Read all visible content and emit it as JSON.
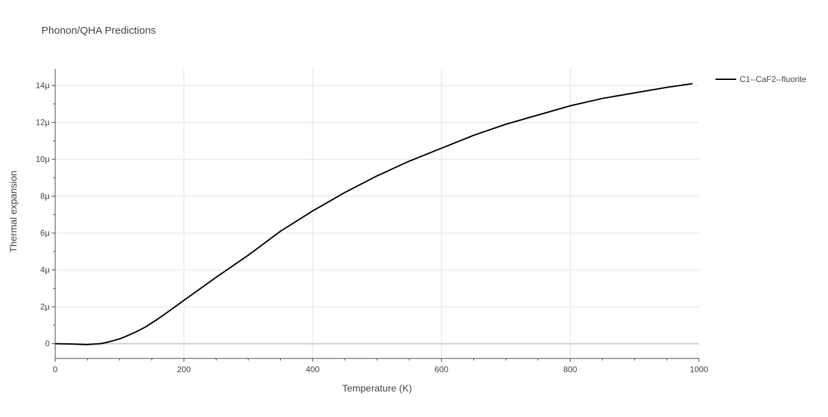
{
  "chart_data": {
    "type": "line",
    "title": "Phonon/QHA Predictions",
    "xlabel": "Temperature (K)",
    "ylabel": "Thermal expansion",
    "xlim": [
      0,
      1000
    ],
    "ylim": [
      -8e-07,
      1.49e-05
    ],
    "x_ticks": [
      0,
      200,
      400,
      600,
      800,
      1000
    ],
    "x_tick_labels": [
      "0",
      "200",
      "400",
      "600",
      "800",
      "1000"
    ],
    "y_ticks": [
      0,
      2e-06,
      4e-06,
      6e-06,
      8e-06,
      1e-05,
      1.2e-05,
      1.4e-05
    ],
    "y_tick_labels": [
      "0",
      "2μ",
      "4μ",
      "6μ",
      "8μ",
      "10μ",
      "12μ",
      "14μ"
    ],
    "grid": true,
    "legend_position": "top-right",
    "series": [
      {
        "name": "C1--CaF2--fluorite",
        "color": "#000000",
        "x": [
          0,
          25,
          50,
          70,
          80,
          90,
          100,
          110,
          125,
          140,
          160,
          175,
          200,
          250,
          300,
          350,
          400,
          450,
          500,
          550,
          600,
          650,
          700,
          750,
          800,
          850,
          900,
          950,
          990
        ],
        "y": [
          0,
          -2e-08,
          -5e-08,
          0,
          7e-08,
          1.6e-07,
          2.6e-07,
          4e-07,
          6.3e-07,
          9e-07,
          1.35e-06,
          1.72e-06,
          2.35e-06,
          3.6e-06,
          4.8e-06,
          6.1e-06,
          7.2e-06,
          8.2e-06,
          9.1e-06,
          9.9e-06,
          1.06e-05,
          1.13e-05,
          1.19e-05,
          1.24e-05,
          1.29e-05,
          1.33e-05,
          1.36e-05,
          1.39e-05,
          1.41e-05
        ]
      }
    ]
  }
}
